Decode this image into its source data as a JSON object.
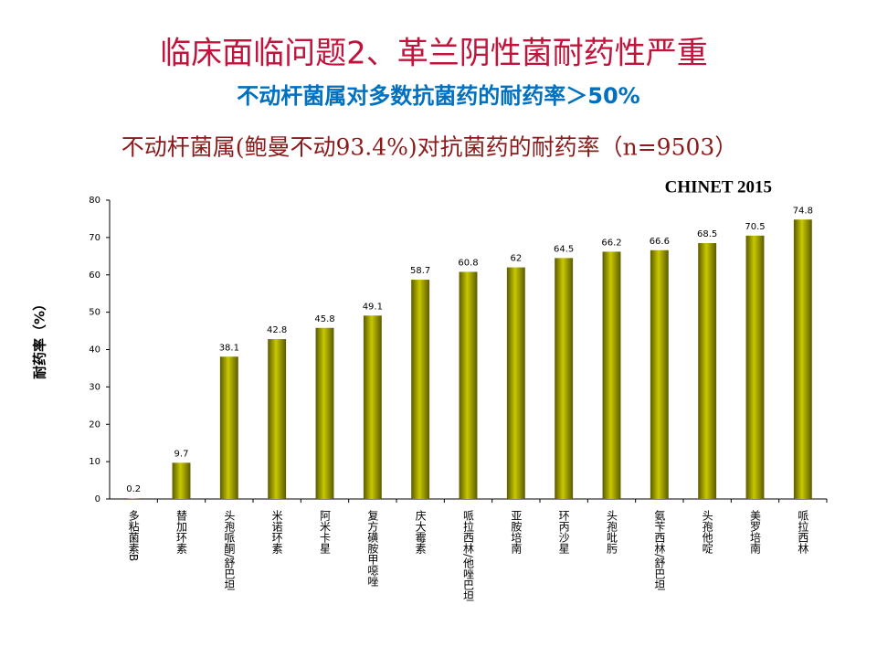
{
  "slide": {
    "title": "临床面临问题2、革兰阴性菌耐药性严重",
    "subtitle": "不动杆菌属对多数抗菌药的耐药率＞50%"
  },
  "chart_data": {
    "type": "bar",
    "title": "不动杆菌属(鲍曼不动93.4%)对抗菌药的耐药率（n=9503）",
    "annotation": "CHINET 2015",
    "y_label": "耐药率（%）",
    "categories": [
      "多粘菌素B",
      "替加环素",
      "头孢哌酮/舒巴坦",
      "米诺环素",
      "阿米卡星",
      "复方磺胺甲噁唑",
      "庆大霉素",
      "哌拉西林/他唑巴坦",
      "亚胺培南",
      "环丙沙星",
      "头孢吡肟",
      "氨苄西林/舒巴坦",
      "头孢他啶",
      "美罗培南",
      "哌拉西林"
    ],
    "values": [
      0.2,
      9.7,
      38.1,
      42.8,
      45.8,
      49.1,
      58.7,
      60.8,
      62,
      64.5,
      66.2,
      66.6,
      68.5,
      70.5,
      74.8
    ],
    "color": "#c8c800",
    "ylim": [
      0,
      80
    ],
    "yticks": [
      0,
      10,
      20,
      30,
      40,
      50,
      60,
      70,
      80
    ],
    "grid": false
  }
}
